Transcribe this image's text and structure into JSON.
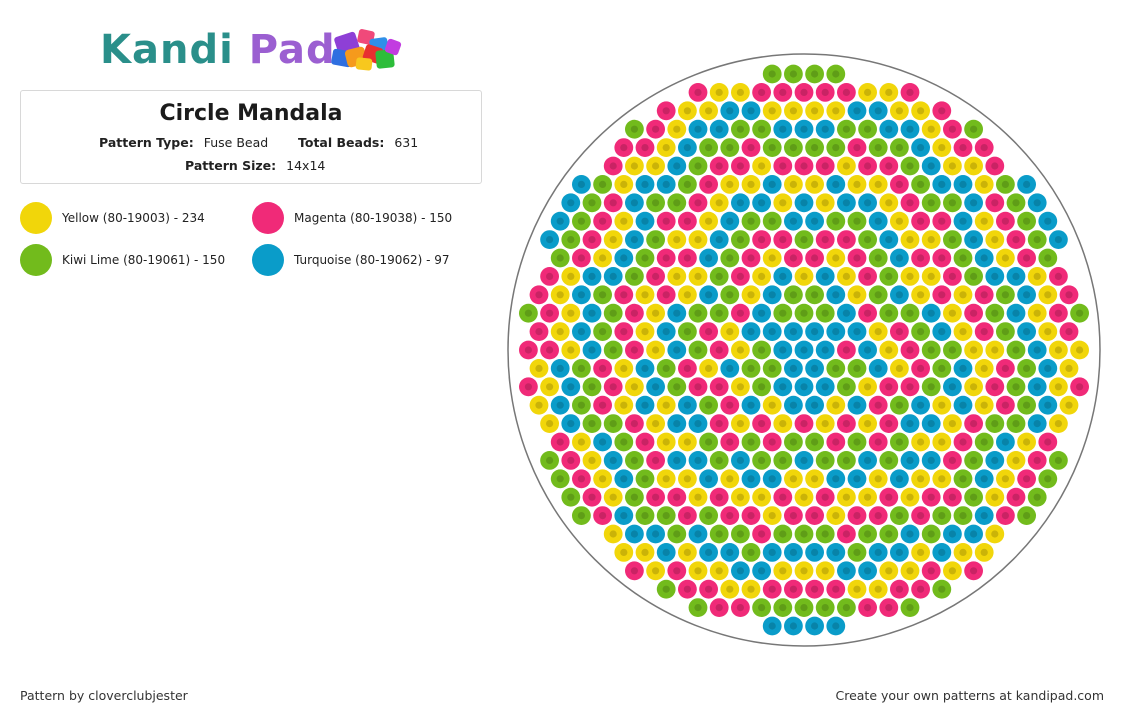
{
  "header": {
    "logo_kandi": "Kandi",
    "logo_pad": "Pad",
    "logo_cubes_icon": "bead-cubes-icon"
  },
  "pattern": {
    "title": "Circle Mandala",
    "type_label": "Pattern Type:",
    "type_value": "Fuse Bead",
    "beads_label": "Total Beads:",
    "beads_value": "631",
    "size_label": "Pattern Size:",
    "size_value": "14x14"
  },
  "colors": {
    "yellow": "#f1d60a",
    "magenta": "#f02a78",
    "lime": "#72bb1c",
    "turquoise": "#0a9cc9",
    "logo_teal": "#2a8f8a",
    "logo_purple": "#9b5fd1"
  },
  "legend": [
    {
      "label": "Yellow (80-19003) - 234",
      "color": "#f1d60a"
    },
    {
      "label": "Magenta (80-19038) - 150",
      "color": "#f02a78"
    },
    {
      "label": "Kiwi Lime (80-19061) - 150",
      "color": "#72bb1c"
    },
    {
      "label": "Turquoise (80-19062) - 97",
      "color": "#0a9cc9"
    }
  ],
  "footer": {
    "credit": "Pattern by cloverclubjester",
    "cta": "Create your own patterns at kandipad.com"
  }
}
